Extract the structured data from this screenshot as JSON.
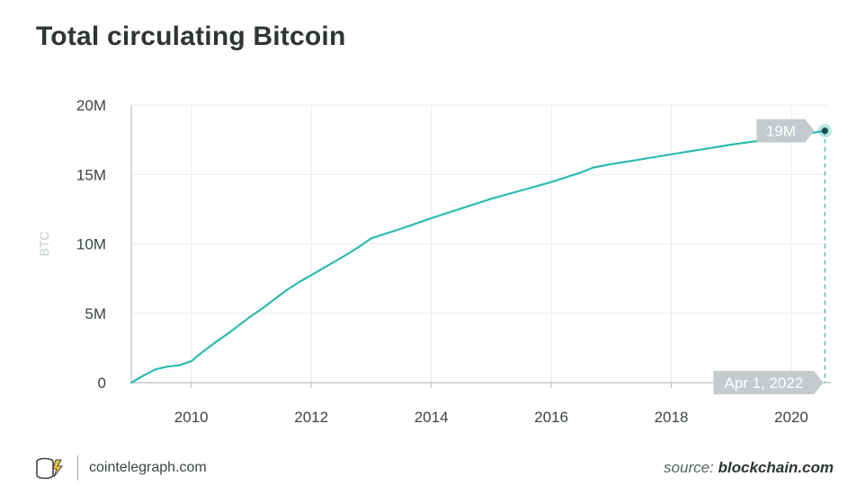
{
  "chart_data": {
    "type": "line",
    "title": "Total circulating Bitcoin",
    "xlabel": "",
    "ylabel": "BTC",
    "xlim": [
      2009.0,
      2020.6
    ],
    "ylim": [
      0,
      20000000
    ],
    "x_ticks": [
      2010,
      2012,
      2014,
      2016,
      2018,
      2020
    ],
    "x_tick_labels": [
      "2010",
      "2012",
      "2014",
      "2016",
      "2018",
      "2020"
    ],
    "y_ticks": [
      0,
      5000000,
      10000000,
      15000000,
      20000000
    ],
    "y_tick_labels": [
      "0",
      "5M",
      "10M",
      "15M",
      "20M"
    ],
    "grid": true,
    "line_color": "#2cbbb0",
    "series": [
      {
        "x": [
          2009.0,
          2009.2,
          2009.4,
          2009.6,
          2009.8,
          2010.0,
          2010.2,
          2010.4,
          2010.6,
          2010.8,
          2011.0,
          2011.2,
          2011.4,
          2011.6,
          2011.8,
          2012.0,
          2012.2,
          2012.4,
          2012.6,
          2012.8,
          2013.0,
          2013.5,
          2014.0,
          2014.5,
          2015.0,
          2015.5,
          2016.0,
          2016.5,
          2016.7,
          2017.0,
          2017.5,
          2018.0,
          2018.5,
          2019.0,
          2019.5,
          2020.0,
          2020.56
        ],
        "values": [
          0,
          500000,
          950000,
          1150000,
          1250000,
          1550000,
          2250000,
          2900000,
          3500000,
          4150000,
          4800000,
          5400000,
          6050000,
          6700000,
          7250000,
          7750000,
          8250000,
          8750000,
          9250000,
          9800000,
          10400000,
          11100000,
          11850000,
          12550000,
          13250000,
          13850000,
          14450000,
          15150000,
          15500000,
          15750000,
          16100000,
          16450000,
          16800000,
          17150000,
          17450000,
          17750000,
          18150000
        ]
      }
    ],
    "annotations": [
      {
        "label": "19M",
        "axis": "y"
      },
      {
        "label": "Apr 1, 2022",
        "axis": "x"
      }
    ]
  },
  "footer": {
    "site": "cointelegraph.com",
    "source_label": "source:",
    "source_name": "blockchain.com"
  },
  "colors": {
    "accent": "#2cbbb0",
    "grid": "#e8ecec",
    "tick_text": "#3d4446",
    "annotation_bg": "#c3cbcd",
    "title": "#2f3435"
  }
}
